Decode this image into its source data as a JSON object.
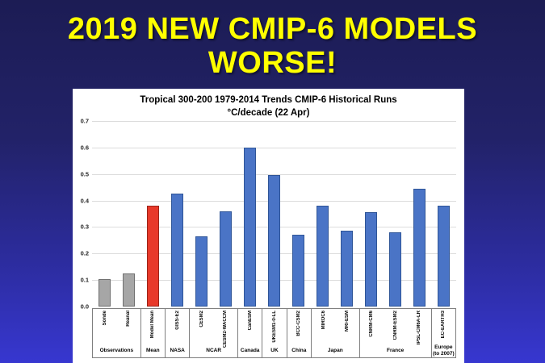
{
  "slide": {
    "title_line1": "2019 NEW CMIP-6 MODELS",
    "title_line2": "WORSE!",
    "title_color": "#FFFF00"
  },
  "chart_data": {
    "type": "bar",
    "title": "Tropical 300-200 1979-2014 Trends CMIP-6 Historical Runs",
    "subtitle": "°C/decade (22 Apr)",
    "xlabel": "",
    "ylabel": "",
    "ylim": [
      0,
      0.7
    ],
    "ytick_step": 0.1,
    "yticks": [
      "0.0",
      "0.1",
      "0.2",
      "0.3",
      "0.4",
      "0.5",
      "0.6",
      "0.7"
    ],
    "grid": true,
    "legend_position": "none",
    "colors": {
      "observation": "#a6a6a6",
      "observation_border": "#707070",
      "mean": "#e8392a",
      "mean_border": "#9c2318",
      "model": "#4a74c6",
      "model_border": "#2f5597"
    },
    "bars": [
      {
        "label": "Sonde",
        "group": "Observations",
        "value": 0.105,
        "type": "observation"
      },
      {
        "label": "Reanal",
        "group": "Observations",
        "value": 0.125,
        "type": "observation"
      },
      {
        "label": "Model Mean",
        "group": "Mean",
        "value": 0.38,
        "type": "mean"
      },
      {
        "label": "GISS-E2",
        "group": "NASA",
        "value": 0.425,
        "type": "model"
      },
      {
        "label": "CESM2",
        "group": "NCAR",
        "value": 0.265,
        "type": "model"
      },
      {
        "label": "CESM2-WACCM",
        "group": "NCAR",
        "value": 0.36,
        "type": "model"
      },
      {
        "label": "CanESM",
        "group": "Canada",
        "value": 0.6,
        "type": "model"
      },
      {
        "label": "UKESM1-0-LL",
        "group": "UK",
        "value": 0.495,
        "type": "model"
      },
      {
        "label": "BCC-CSM2",
        "group": "China",
        "value": 0.27,
        "type": "model"
      },
      {
        "label": "MIROC6",
        "group": "Japan",
        "value": 0.38,
        "type": "model"
      },
      {
        "label": "MRI-ESM",
        "group": "Japan",
        "value": 0.285,
        "type": "model"
      },
      {
        "label": "CNRM-CM6",
        "group": "France",
        "value": 0.355,
        "type": "model"
      },
      {
        "label": "CNRM-ESM2",
        "group": "France",
        "value": 0.28,
        "type": "model"
      },
      {
        "label": "IPSL-CM6A-LR",
        "group": "France",
        "value": 0.445,
        "type": "model"
      },
      {
        "label": "EC-EARTH3",
        "group": "Europe (to 2007)",
        "value": 0.38,
        "type": "model"
      }
    ],
    "groups": [
      {
        "label": "Observations",
        "span": 2
      },
      {
        "label": "Mean",
        "span": 1
      },
      {
        "label": "NASA",
        "span": 1
      },
      {
        "label": "NCAR",
        "span": 2
      },
      {
        "label": "Canada",
        "span": 1
      },
      {
        "label": "UK",
        "span": 1
      },
      {
        "label": "China",
        "span": 1
      },
      {
        "label": "Japan",
        "span": 2
      },
      {
        "label": "France",
        "span": 3
      },
      {
        "label": "Europe (to 2007)",
        "span": 1
      }
    ]
  }
}
